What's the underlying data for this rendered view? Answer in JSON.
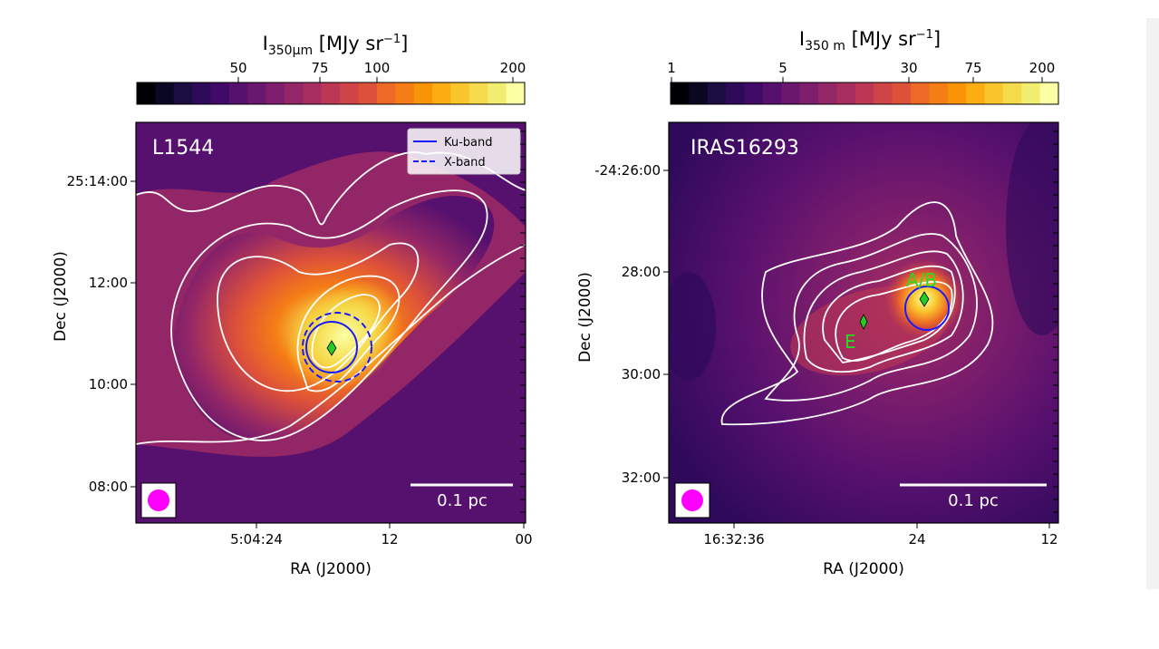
{
  "chart_data": [
    {
      "type": "heatmap",
      "source_label": "L1544",
      "colorbar": {
        "label_main": "I",
        "label_sub": "350μm",
        "label_unit": " [MJy sr",
        "label_sup": "−1",
        "label_end": "]",
        "ticks": [
          "50",
          "75",
          "100",
          "200"
        ],
        "colormap": "inferno",
        "scale": "log"
      },
      "xlabel": "RA (J2000)",
      "ylabel": "Dec (J2000)",
      "xticks": [
        "5:04:24",
        "12",
        "00"
      ],
      "yticks": [
        "25:14:00",
        "12:00",
        "10:00",
        "08:00"
      ],
      "legend": {
        "placement": "top-right",
        "entries": [
          {
            "name": "Ku-band",
            "style": "solid"
          },
          {
            "name": "X-band",
            "style": "dashed"
          }
        ]
      },
      "scalebar": "0.1 pc",
      "beam_color": "#ff00ff",
      "marker_color": "#22cc22"
    },
    {
      "type": "heatmap",
      "source_label": "IRAS16293",
      "colorbar": {
        "label_main": "I",
        "label_sub": "350  m",
        "label_unit": " [MJy sr",
        "label_sup": "−1",
        "label_end": "]",
        "ticks": [
          "1",
          "5",
          "30",
          "75",
          "200"
        ],
        "colormap": "inferno",
        "scale": "log"
      },
      "xlabel": "RA (J2000)",
      "ylabel": "Dec (J2000)",
      "xticks": [
        "16:32:36",
        "24",
        "12"
      ],
      "yticks": [
        "-24:26:00",
        "28:00",
        "30:00",
        "32:00"
      ],
      "annotations": [
        "A/B",
        "E"
      ],
      "scalebar": "0.1 pc",
      "beam_color": "#ff00ff",
      "marker_color": "#22cc22"
    }
  ],
  "colors": {
    "inferno": [
      "#000004",
      "#0a0722",
      "#1b0c41",
      "#2f0a5b",
      "#420a68",
      "#56106e",
      "#6a176e",
      "#7f1e6c",
      "#932667",
      "#a82e5f",
      "#bc3754",
      "#cf4446",
      "#dd513a",
      "#ed6925",
      "#f57d15",
      "#fa9407",
      "#fcad12",
      "#fac62d",
      "#f5db4c",
      "#f1ed71",
      "#fcffa4"
    ],
    "ku_band": "#1a1aff"
  }
}
